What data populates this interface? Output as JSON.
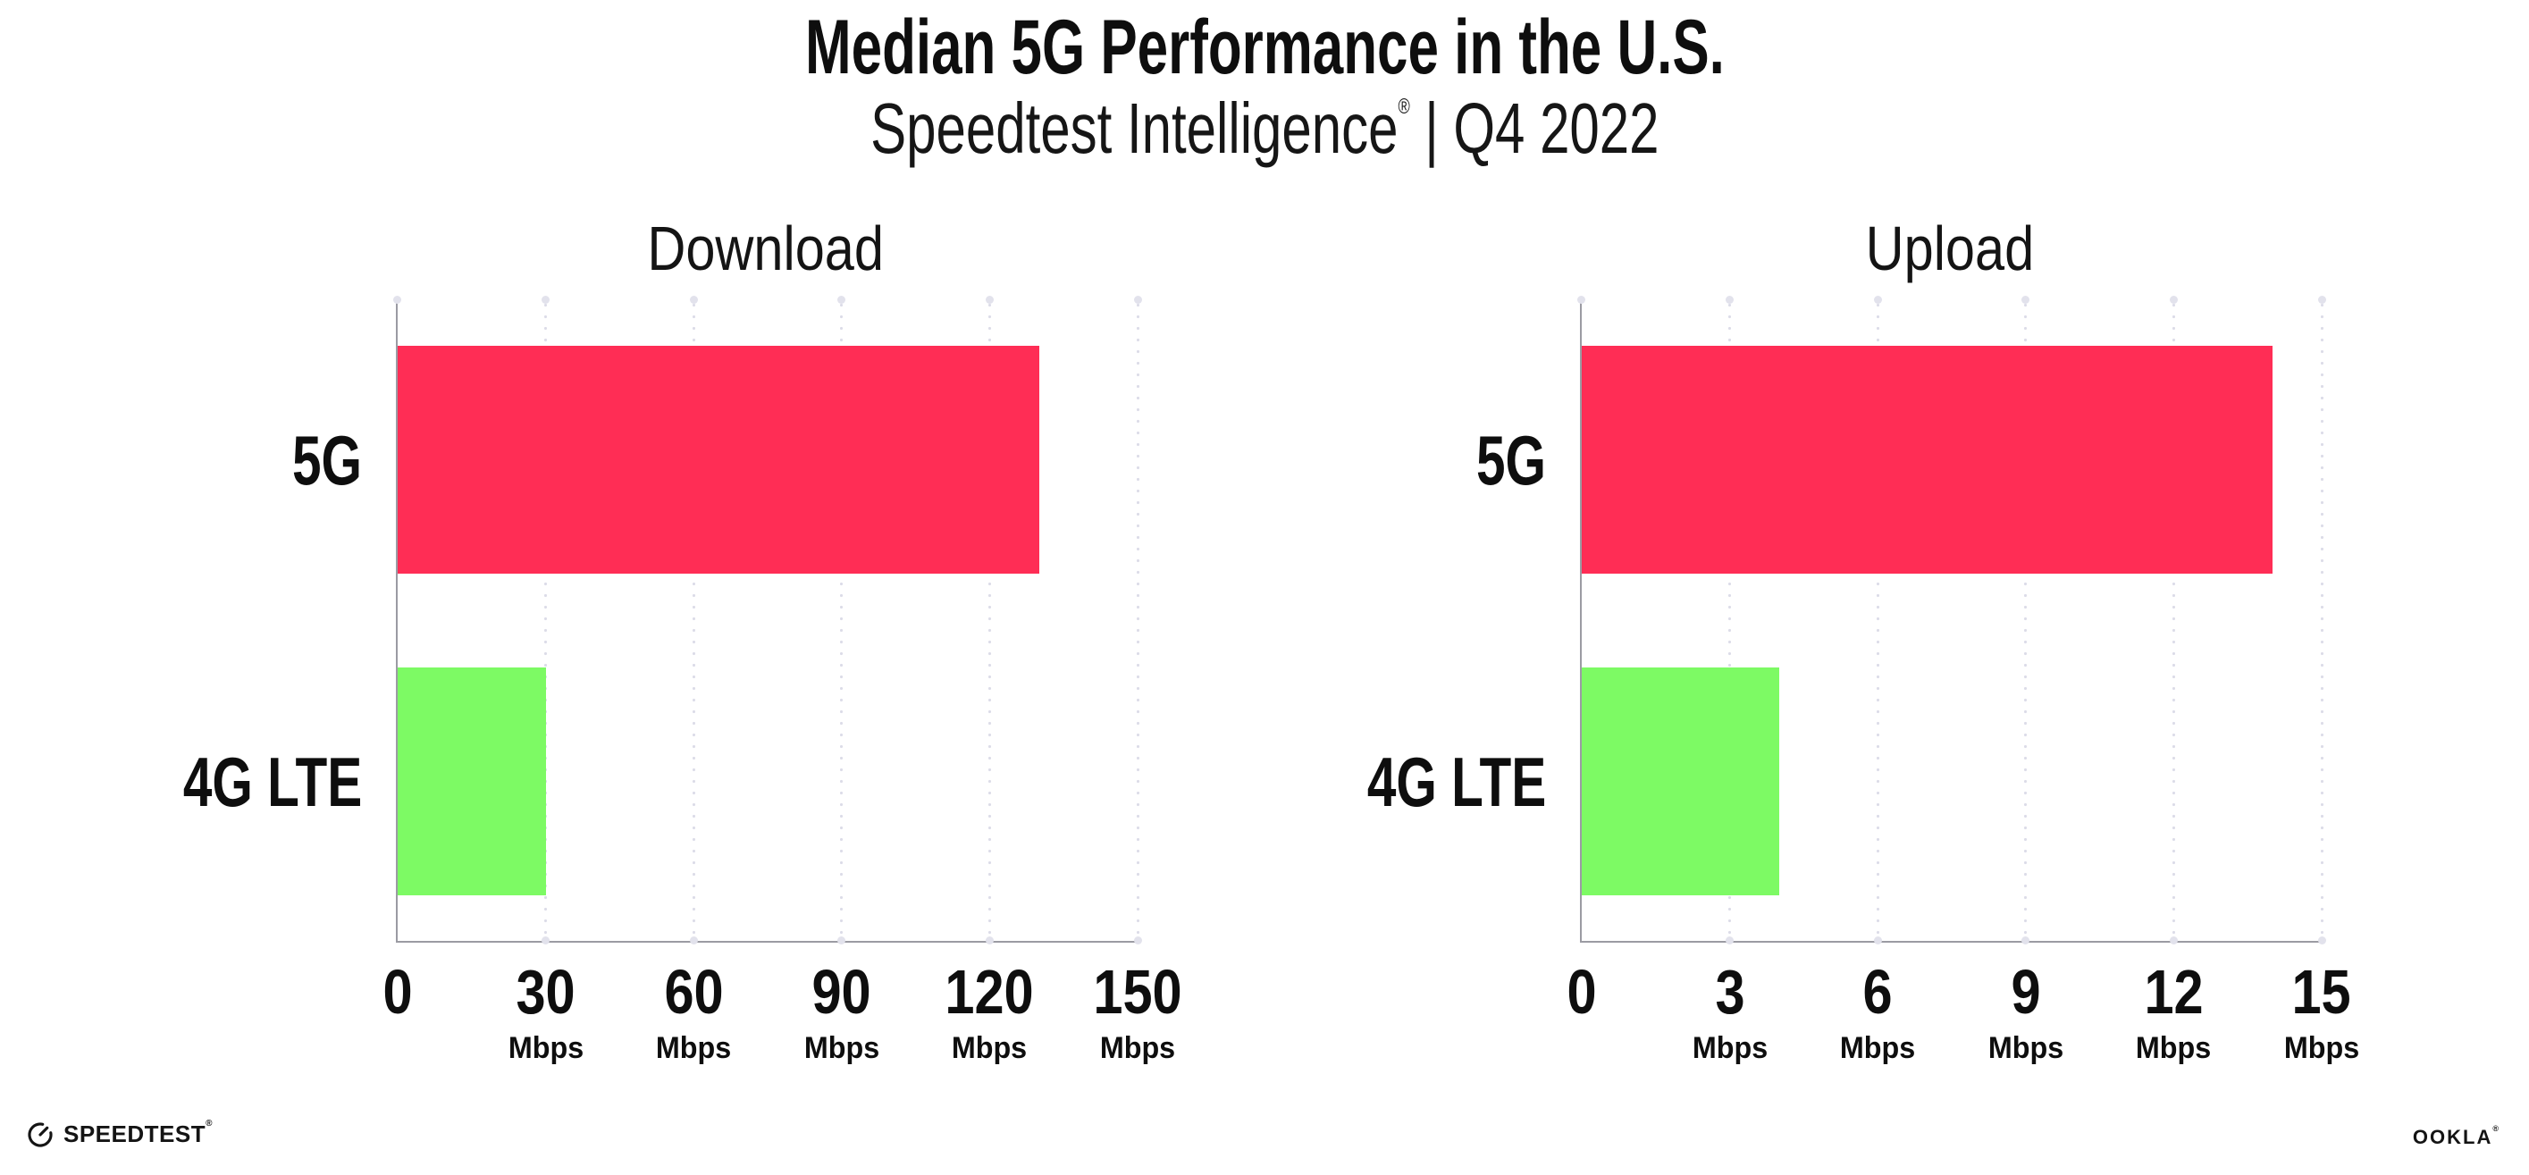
{
  "header": {
    "title": "Median 5G Performance in the U.S.",
    "subtitle": {
      "brand": "Speedtest Intelligence",
      "registered_mark": "®",
      "separator": "|",
      "period": "Q4 2022"
    }
  },
  "chart_data": [
    {
      "type": "bar",
      "orientation": "horizontal",
      "title": "Download",
      "categories": [
        "5G",
        "4G LTE"
      ],
      "values": [
        130,
        30
      ],
      "unit": "Mbps",
      "xlim": [
        0,
        150
      ],
      "xticks": [
        0,
        30,
        60,
        90,
        120,
        150
      ],
      "series_colors": [
        "#FF2D55",
        "#7DFA64"
      ],
      "grid": "vertical-dotted",
      "legend_position": "none"
    },
    {
      "type": "bar",
      "orientation": "horizontal",
      "title": "Upload",
      "categories": [
        "5G",
        "4G LTE"
      ],
      "values": [
        14,
        4
      ],
      "unit": "Mbps",
      "xlim": [
        0,
        15
      ],
      "xticks": [
        0,
        3,
        6,
        9,
        12,
        15
      ],
      "series_colors": [
        "#FF2D55",
        "#7DFA64"
      ],
      "grid": "vertical-dotted",
      "legend_position": "none"
    }
  ],
  "footer": {
    "speedtest_wordmark": "SPEEDTEST",
    "speedtest_trademark": "®",
    "ookla_wordmark": "OOKLA",
    "ookla_trademark": "®"
  },
  "colors": {
    "bar_5g": "#FF2D55",
    "bar_4g_lte": "#7DFA64",
    "axis": "#9B9BA3",
    "gridline": "#DCDCE8",
    "text": "#111111",
    "background": "#FFFFFF"
  }
}
